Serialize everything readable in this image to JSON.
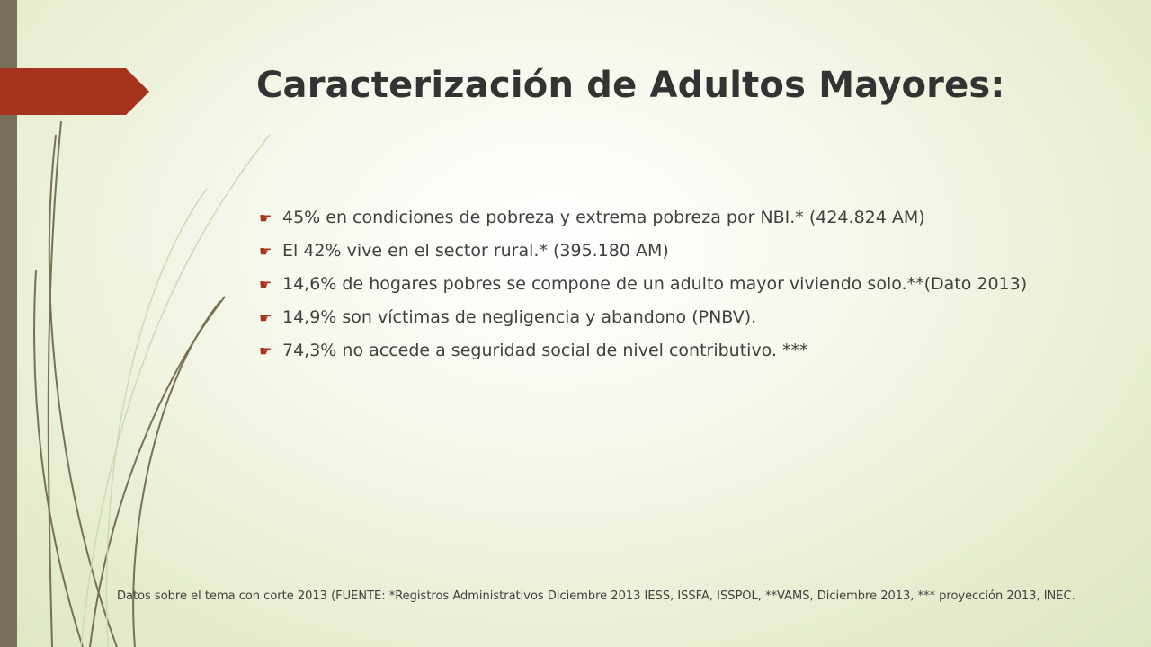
{
  "slide": {
    "title": "Caracterización de Adultos Mayores:",
    "bullets": [
      "45% en condiciones de pobreza y extrema pobreza por NBI.* (424.824 AM)",
      "El 42% vive en el sector rural.* (395.180 AM)",
      "14,6% de hogares pobres se compone de un adulto mayor viviendo solo.**(Dato 2013)",
      "14,9% son víctimas de negligencia y abandono (PNBV).",
      "74,3% no accede a seguridad social de nivel contributivo. ***"
    ],
    "footnote": "Datos sobre el tema con corte 2013 (FUENTE: *Registros Administrativos Diciembre 2013 IESS, ISSFA, ISSPOL, **VAMS, Diciembre 2013, *** proyección 2013, INEC.",
    "bullet_icon": "hand-pointer-icon"
  },
  "colors": {
    "accent": "#a8331c",
    "band": "#787058",
    "text": "#404040",
    "title": "#333333"
  }
}
